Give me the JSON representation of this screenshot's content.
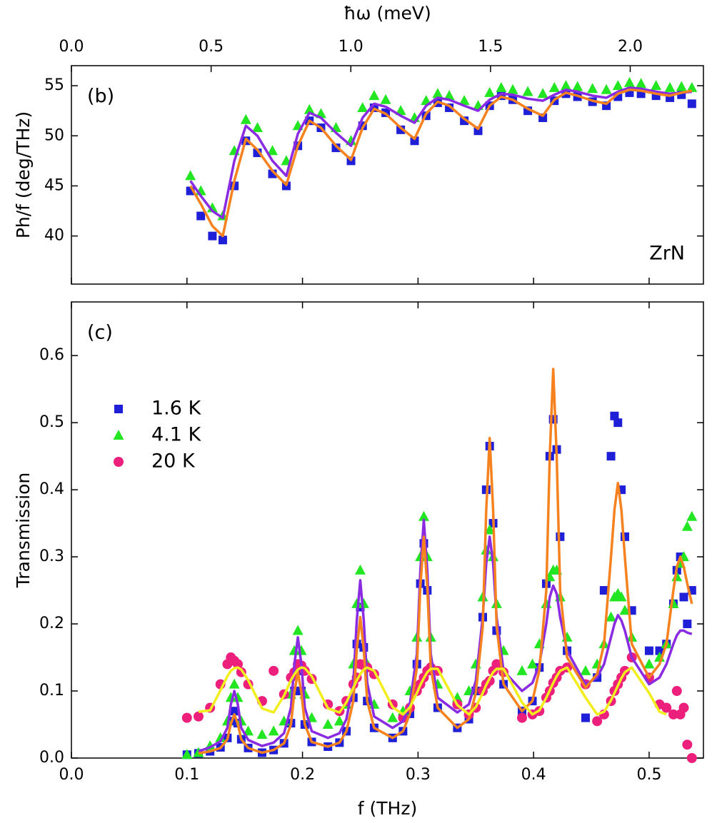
{
  "chart_data": [
    {
      "type": "scatter",
      "annotation": "(b)",
      "label": "ZrN",
      "x2label": "ħω (meV)",
      "ylabel": "Ph/f (deg/THz)",
      "xlim": [
        0,
        0.547
      ],
      "x2lim": [
        0,
        2.262
      ],
      "x2ticks": [
        {
          "value": 0,
          "label": "0.0"
        },
        0.5,
        {
          "value": 1,
          "label": "1.0"
        },
        1.5,
        {
          "value": 2,
          "label": "2.0"
        }
      ],
      "ylim": [
        35.2,
        57
      ],
      "yticks": [
        40,
        45,
        50,
        55
      ],
      "x": [
        0.103,
        0.112,
        0.122,
        0.131,
        0.141,
        0.151,
        0.161,
        0.174,
        0.186,
        0.196,
        0.206,
        0.216,
        0.229,
        0.242,
        0.252,
        0.262,
        0.272,
        0.285,
        0.297,
        0.307,
        0.317,
        0.327,
        0.34,
        0.352,
        0.362,
        0.372,
        0.382,
        0.395,
        0.408,
        0.418,
        0.428,
        0.438,
        0.451,
        0.463,
        0.473,
        0.483,
        0.493,
        0.506,
        0.518,
        0.528,
        0.537
      ],
      "series": [
        {
          "color": "#1f1fd8",
          "marker": "square",
          "values": [
            44.5,
            42.0,
            40.0,
            39.6,
            45.0,
            49.5,
            48.3,
            46.2,
            45.0,
            49.0,
            51.5,
            50.8,
            48.8,
            47.5,
            51.0,
            52.8,
            52.3,
            50.6,
            49.5,
            52.0,
            53.3,
            52.8,
            51.5,
            50.5,
            53.0,
            54.0,
            53.6,
            52.5,
            51.8,
            53.5,
            54.2,
            53.9,
            53.4,
            53.0,
            53.9,
            54.3,
            54.2,
            54.0,
            53.8,
            54.1,
            53.2
          ]
        },
        {
          "color": "#22e622",
          "marker": "triangle",
          "values": [
            46.0,
            44.5,
            42.8,
            42.0,
            48.5,
            51.6,
            50.8,
            48.5,
            47.5,
            51.0,
            52.6,
            52.2,
            50.8,
            49.5,
            52.8,
            54.0,
            53.6,
            52.5,
            51.8,
            53.5,
            54.2,
            54.0,
            53.5,
            53.0,
            54.3,
            54.8,
            54.6,
            54.4,
            54.2,
            54.8,
            55.0,
            54.9,
            54.7,
            54.6,
            55.0,
            55.3,
            55.2,
            55.0,
            54.8,
            54.9,
            54.8
          ]
        },
        {
          "color": "#8a2be2",
          "marker": "line",
          "values": [
            45.5,
            44.0,
            42.5,
            41.8,
            47.5,
            51.0,
            50.0,
            47.5,
            46.0,
            50.2,
            52.3,
            51.8,
            50.3,
            49.0,
            51.8,
            53.2,
            52.9,
            52.0,
            51.3,
            53.0,
            53.8,
            53.6,
            53.0,
            52.5,
            53.6,
            54.2,
            54.1,
            53.7,
            53.5,
            54.1,
            54.6,
            54.4,
            54.0,
            53.8,
            54.4,
            54.8,
            54.7,
            54.4,
            54.2,
            54.3,
            54.4
          ]
        },
        {
          "color": "#f5821f",
          "marker": "line",
          "values": [
            45.0,
            43.2,
            41.0,
            40.0,
            45.5,
            49.7,
            48.6,
            46.5,
            45.1,
            49.0,
            51.5,
            50.8,
            49.0,
            47.6,
            50.8,
            52.7,
            52.2,
            50.8,
            49.7,
            52.2,
            53.4,
            53.0,
            51.7,
            50.7,
            53.0,
            53.9,
            53.6,
            52.7,
            52.0,
            53.6,
            54.3,
            54.0,
            53.5,
            53.2,
            54.2,
            54.6,
            54.5,
            54.2,
            54.0,
            54.3,
            54.5
          ]
        }
      ]
    },
    {
      "type": "scatter",
      "annotation": "(c)",
      "xlabel": "f (THz)",
      "ylabel": "Transmission",
      "xlim": [
        0,
        0.547
      ],
      "xticks": [
        {
          "value": 0,
          "label": "0.0"
        },
        0.1,
        0.2,
        0.3,
        0.4,
        0.5
      ],
      "ylim": [
        0,
        0.68
      ],
      "yticks": [
        {
          "value": 0,
          "label": "0.0"
        },
        0.1,
        0.2,
        0.3,
        0.4,
        0.5,
        0.6
      ],
      "legend": "upper left",
      "x": [
        0.1,
        0.11,
        0.12,
        0.129,
        0.135,
        0.138,
        0.141,
        0.144,
        0.147,
        0.153,
        0.165,
        0.175,
        0.184,
        0.19,
        0.193,
        0.196,
        0.199,
        0.202,
        0.208,
        0.222,
        0.232,
        0.238,
        0.244,
        0.247,
        0.25,
        0.253,
        0.256,
        0.262,
        0.278,
        0.287,
        0.293,
        0.299,
        0.302,
        0.305,
        0.308,
        0.311,
        0.317,
        0.334,
        0.344,
        0.35,
        0.356,
        0.359,
        0.362,
        0.365,
        0.368,
        0.374,
        0.39,
        0.399,
        0.405,
        0.411,
        0.414,
        0.417,
        0.42,
        0.423,
        0.429,
        0.445,
        0.455,
        0.461,
        0.467,
        0.47,
        0.473,
        0.476,
        0.479,
        0.485,
        0.5,
        0.509,
        0.515,
        0.521,
        0.524,
        0.527,
        0.53,
        0.533,
        0.537
      ],
      "series": [
        {
          "name": "1.6 K",
          "color": "#1f1fd8",
          "marker": "square",
          "values": [
            0.005,
            0.007,
            0.01,
            0.016,
            0.03,
            0.055,
            0.07,
            0.052,
            0.028,
            0.015,
            0.008,
            0.012,
            0.022,
            0.052,
            0.1,
            0.13,
            0.1,
            0.05,
            0.024,
            0.017,
            0.023,
            0.04,
            0.09,
            0.17,
            0.225,
            0.165,
            0.085,
            0.045,
            0.03,
            0.04,
            0.066,
            0.14,
            0.26,
            0.32,
            0.25,
            0.13,
            0.075,
            0.045,
            0.058,
            0.1,
            0.21,
            0.4,
            0.465,
            0.35,
            0.19,
            0.11,
            0.07,
            0.085,
            0.135,
            0.26,
            0.45,
            0.505,
            0.46,
            0.33,
            0.16,
            0.06,
            0.12,
            0.25,
            0.45,
            0.51,
            0.5,
            0.4,
            0.33,
            0.22,
            0.16,
            0.16,
            0.17,
            0.23,
            0.28,
            0.3,
            0.24,
            0.2,
            0.25
          ]
        },
        {
          "name": "4.1 K",
          "color": "#22e622",
          "marker": "triangle",
          "values": [
            0.005,
            0.008,
            0.018,
            0.03,
            0.055,
            0.09,
            0.11,
            0.09,
            0.055,
            0.04,
            0.035,
            0.04,
            0.055,
            0.095,
            0.16,
            0.19,
            0.16,
            0.095,
            0.06,
            0.05,
            0.055,
            0.08,
            0.14,
            0.23,
            0.28,
            0.23,
            0.14,
            0.08,
            0.06,
            0.07,
            0.1,
            0.18,
            0.3,
            0.36,
            0.3,
            0.18,
            0.11,
            0.09,
            0.1,
            0.14,
            0.24,
            0.31,
            0.34,
            0.3,
            0.23,
            0.16,
            0.13,
            0.14,
            0.17,
            0.23,
            0.27,
            0.28,
            0.28,
            0.24,
            0.18,
            0.13,
            0.14,
            0.17,
            0.21,
            0.24,
            0.245,
            0.24,
            0.22,
            0.18,
            0.14,
            0.15,
            0.17,
            0.23,
            0.27,
            0.29,
            0.3,
            0.345,
            0.36
          ]
        },
        {
          "name": "20 K",
          "color": "#ec1f7c",
          "marker": "circle",
          "values": [
            0.06,
            0.062,
            0.075,
            0.11,
            0.14,
            0.15,
            0.145,
            0.14,
            0.128,
            0.11,
            0.085,
            0.13,
            0.095,
            0.12,
            0.128,
            0.14,
            0.138,
            0.13,
            0.118,
            0.08,
            0.07,
            0.085,
            0.11,
            0.12,
            0.14,
            0.138,
            0.135,
            0.125,
            0.08,
            0.06,
            0.075,
            0.1,
            0.11,
            0.12,
            0.13,
            0.135,
            0.13,
            0.08,
            0.065,
            0.075,
            0.1,
            0.11,
            0.115,
            0.13,
            0.14,
            0.128,
            0.06,
            0.065,
            0.07,
            0.09,
            0.1,
            0.112,
            0.12,
            0.13,
            0.135,
            0.11,
            0.055,
            0.065,
            0.085,
            0.1,
            0.11,
            0.12,
            0.13,
            0.15,
            0.12,
            0.08,
            0.075,
            0.065,
            0.1,
            0.065,
            0.075,
            0.02,
            0.0
          ]
        },
        {
          "color": "#8a2be2",
          "marker": "line",
          "values": [
            null,
            0.01,
            0.016,
            0.025,
            0.045,
            0.08,
            0.1,
            0.08,
            0.045,
            0.027,
            0.018,
            0.023,
            0.037,
            0.075,
            0.14,
            0.18,
            0.14,
            0.075,
            0.04,
            0.03,
            0.037,
            0.058,
            0.112,
            0.206,
            0.265,
            0.206,
            0.112,
            0.062,
            0.045,
            0.055,
            0.082,
            0.155,
            0.28,
            0.355,
            0.28,
            0.155,
            0.09,
            0.068,
            0.08,
            0.115,
            0.21,
            0.29,
            0.33,
            0.29,
            0.21,
            0.13,
            0.1,
            0.112,
            0.14,
            0.2,
            0.24,
            0.257,
            0.245,
            0.21,
            0.16,
            0.11,
            0.12,
            0.14,
            0.18,
            0.2,
            0.213,
            0.205,
            0.19,
            0.15,
            0.11,
            0.12,
            0.14,
            0.17,
            0.183,
            0.19,
            0.19,
            0.187,
            0.185
          ]
        },
        {
          "color": "#f5821f",
          "marker": "line",
          "values": [
            null,
            0.007,
            0.01,
            0.015,
            0.028,
            0.051,
            0.065,
            0.051,
            0.028,
            0.015,
            0.008,
            0.012,
            0.022,
            0.05,
            0.098,
            0.128,
            0.098,
            0.05,
            0.024,
            0.017,
            0.023,
            0.04,
            0.085,
            0.162,
            0.21,
            0.162,
            0.085,
            0.045,
            0.03,
            0.04,
            0.066,
            0.135,
            0.255,
            0.33,
            0.255,
            0.135,
            0.075,
            0.045,
            0.058,
            0.097,
            0.196,
            0.369,
            0.477,
            0.369,
            0.196,
            0.11,
            0.07,
            0.085,
            0.131,
            0.25,
            0.45,
            0.58,
            0.45,
            0.25,
            0.15,
            0.105,
            0.125,
            0.17,
            0.3,
            0.37,
            0.41,
            0.37,
            0.3,
            0.17,
            0.12,
            0.14,
            0.17,
            0.25,
            0.285,
            0.3,
            0.285,
            0.26,
            0.23
          ]
        },
        {
          "color": "#f2ee1e",
          "marker": "line",
          "values": [
            null,
            0.069,
            0.071,
            0.101,
            0.122,
            0.13,
            0.134,
            0.135,
            0.132,
            0.116,
            0.074,
            0.068,
            0.093,
            0.116,
            0.125,
            0.132,
            0.135,
            0.134,
            0.122,
            0.074,
            0.068,
            0.083,
            0.105,
            0.116,
            0.125,
            0.132,
            0.135,
            0.13,
            0.076,
            0.065,
            0.076,
            0.097,
            0.109,
            0.119,
            0.128,
            0.133,
            0.133,
            0.079,
            0.065,
            0.076,
            0.097,
            0.109,
            0.119,
            0.128,
            0.133,
            0.133,
            0.083,
            0.065,
            0.071,
            0.09,
            0.101,
            0.112,
            0.122,
            0.13,
            0.135,
            0.09,
            0.065,
            0.069,
            0.086,
            0.097,
            0.108,
            0.119,
            0.128,
            0.135,
            0.097,
            0.069,
            0.065,
            null,
            null,
            null,
            null,
            null,
            null
          ]
        }
      ]
    }
  ]
}
